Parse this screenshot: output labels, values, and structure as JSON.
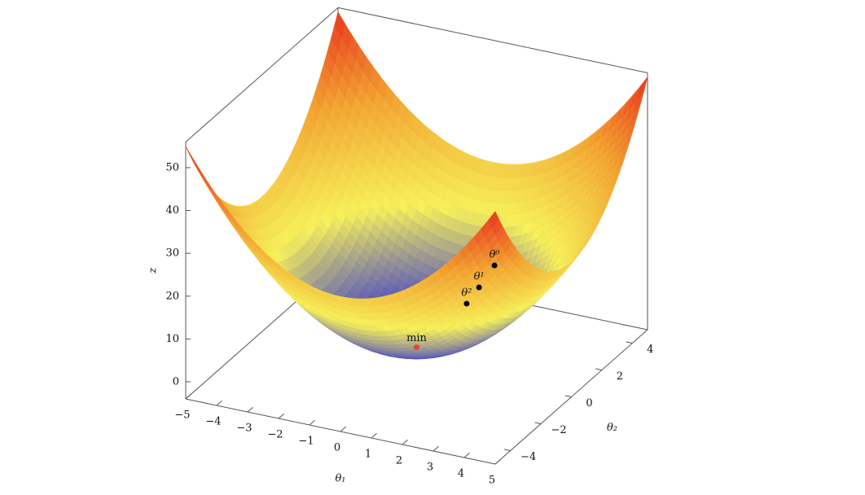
{
  "chart_data": {
    "type": "surface",
    "xlabel": "θ₁",
    "ylabel": "θ₂",
    "zlabel": "z",
    "xlim": [
      -5,
      5
    ],
    "ylim": [
      -5,
      5
    ],
    "zlim": [
      -4,
      56
    ],
    "xticks": [
      {
        "value": -5,
        "label": "−5"
      },
      {
        "value": -4,
        "label": "−4"
      },
      {
        "value": -3,
        "label": "−3"
      },
      {
        "value": -2,
        "label": "−2"
      },
      {
        "value": -1,
        "label": "−1"
      },
      0,
      1,
      2,
      3,
      4,
      5
    ],
    "yticks": [
      {
        "value": -4,
        "label": "−4"
      },
      {
        "value": -2,
        "label": "−2"
      },
      0,
      2,
      4
    ],
    "zticks": [
      0,
      10,
      20,
      30,
      40,
      50
    ],
    "surface": {
      "center": [
        0,
        0
      ],
      "curvature": 1.1,
      "min_z": 0
    },
    "colormap": [
      "#2a2ad8",
      "#f6f05a",
      "#f2a632",
      "#e8301e"
    ],
    "points": [
      {
        "label": "θ⁰",
        "theta1": 3.5,
        "theta2": -2,
        "z": 30.7,
        "color": "#000000"
      },
      {
        "label": "θ¹",
        "theta1": 3,
        "theta2": -2,
        "z": 24.8,
        "color": "#000000"
      },
      {
        "label": "θ²",
        "theta1": 2.6,
        "theta2": -2,
        "z": 20.4,
        "color": "#000000"
      }
    ],
    "minimum": {
      "label": "min",
      "theta1": 0,
      "theta2": 0,
      "z": 0,
      "color": "#e8452c"
    }
  }
}
